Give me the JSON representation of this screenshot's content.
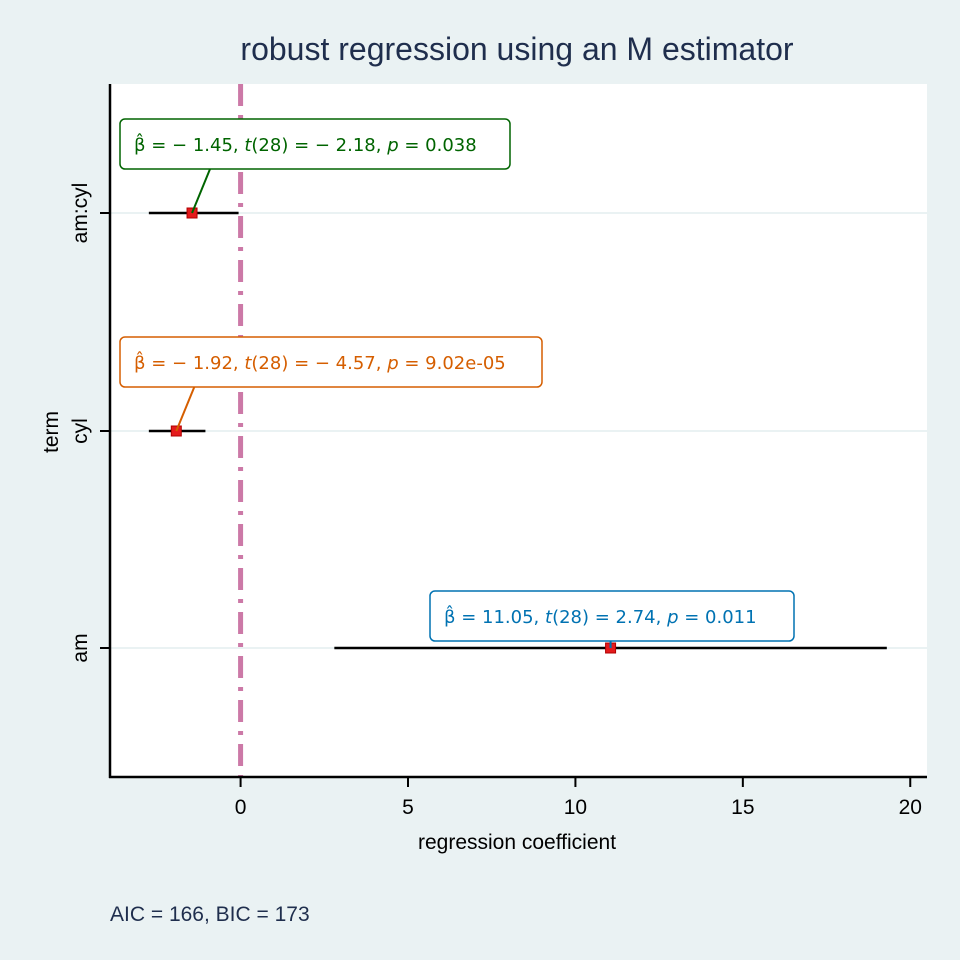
{
  "chart_data": {
    "type": "scatter",
    "title": "robust regression using an M estimator",
    "xlabel": "regression coefficient",
    "ylabel": "term",
    "caption": "AIC = 166, BIC = 173",
    "xlim": [
      -3.9,
      20.5
    ],
    "xticks": [
      0,
      5,
      10,
      15,
      20
    ],
    "reference_line": {
      "x": 0,
      "style": "dashed",
      "color": "#cc79a7"
    },
    "point_color": "#e41a1c",
    "terms": [
      {
        "term": "am",
        "estimate": 11.05,
        "conf_low": 2.8,
        "conf_high": 19.3,
        "label_color": "#0072b2",
        "beta": "11.05",
        "df": "28",
        "t": "2.74",
        "p": "0.011"
      },
      {
        "term": "cyl",
        "estimate": -1.92,
        "conf_low": -2.74,
        "conf_high": -1.05,
        "label_color": "#d55e00",
        "beta": "− 1.92",
        "df": "28",
        "t": "− 4.57",
        "p": "9.02e-05"
      },
      {
        "term": "am:cyl",
        "estimate": -1.45,
        "conf_low": -2.74,
        "conf_high": -0.06,
        "label_color": "#006400",
        "beta": "− 1.45",
        "df": "28",
        "t": "− 2.18",
        "p": "0.038"
      }
    ]
  }
}
